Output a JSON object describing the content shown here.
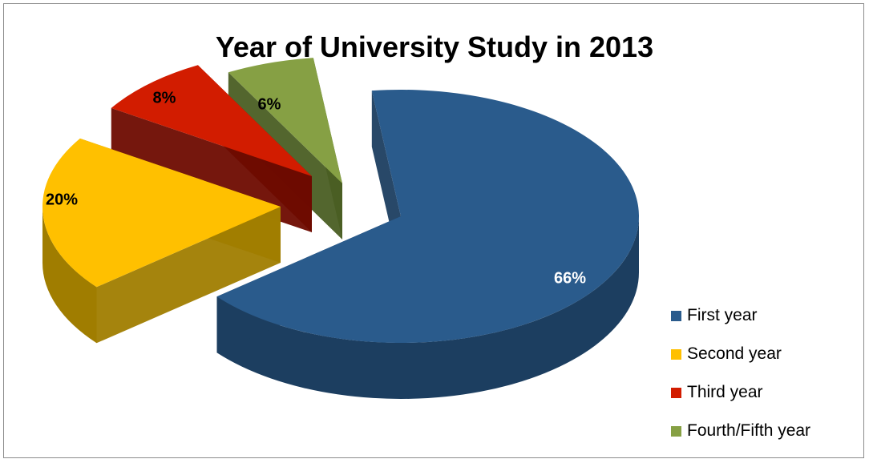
{
  "chart_data": {
    "type": "pie",
    "title": "Year of University Study in 2013",
    "categories": [
      "First year",
      "Second year",
      "Third year",
      "Fourth/Fifth year"
    ],
    "values": [
      66,
      20,
      8,
      6
    ],
    "labels": [
      "66%",
      "20%",
      "8%",
      "6%"
    ],
    "colors": [
      "#2a5b8c",
      "#ffc000",
      "#d21c00",
      "#86a044"
    ],
    "side_colors": [
      "#1c3e60",
      "#a07d00",
      "#6e0b00",
      "#4a5e23"
    ],
    "label_colors": [
      "#ffffff",
      "#000000",
      "#000000",
      "#000000"
    ],
    "legend_position": "right",
    "exploded": [
      false,
      true,
      true,
      true
    ],
    "three_d": true
  }
}
